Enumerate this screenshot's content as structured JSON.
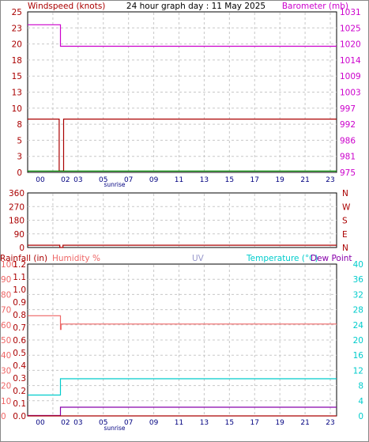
{
  "header": {
    "left_label": "Windspeed (knots)",
    "title": "24 hour graph day : 11 May 2025",
    "right_label": "Barometer (mb)"
  },
  "bottom_header": {
    "rainfall_label": "Rainfall (in)",
    "humidity_label": "Humidity %",
    "uv_label": "UV",
    "temperature_label": "Temperature (°C)",
    "dewpoint_label": "Dew Point"
  },
  "sunrise_label": "sunrise",
  "colors": {
    "frame": "#000000",
    "grid": "#c8c8c8",
    "wind": "#aa0000",
    "wind_avg": "#008800",
    "barometer": "#cc00cc",
    "direction": "#aa0000",
    "rain": "#aa0000",
    "humidity": "#ee6666",
    "uv": "#9999cc",
    "temperature": "#00cccc",
    "dewpoint": "#8800aa"
  },
  "chart_data": [
    {
      "type": "line",
      "name": "wind-barometer",
      "x_ticks": [
        "00",
        "02",
        "03",
        "05",
        "07",
        "09",
        "11",
        "13",
        "15",
        "17",
        "19",
        "21",
        "23"
      ],
      "x_range": [
        23,
        47.5
      ],
      "left_axis": {
        "ticks": [
          "25",
          "23",
          "20",
          "18",
          "15",
          "13",
          "10",
          "8",
          "5",
          "3",
          "0"
        ],
        "range": [
          0,
          25
        ]
      },
      "right_axis": {
        "ticks": [
          "1031",
          "1025",
          "1020",
          "1014",
          "1009",
          "1003",
          "997",
          "992",
          "986",
          "981",
          "975"
        ],
        "range": [
          975,
          1031
        ]
      },
      "series": [
        {
          "key": "barometer",
          "axis": "right",
          "points": [
            [
              23,
              1026.5
            ],
            [
              25.6,
              1026.5
            ],
            [
              25.6,
              1019
            ],
            [
              47.5,
              1019
            ]
          ]
        },
        {
          "key": "wind",
          "axis": "left",
          "points": [
            [
              23,
              8.3
            ],
            [
              25.5,
              8.3
            ],
            [
              25.5,
              0.2
            ],
            [
              25.85,
              0.2
            ],
            [
              25.85,
              8.3
            ],
            [
              47.5,
              8.3
            ]
          ]
        },
        {
          "key": "wind_avg",
          "axis": "left",
          "points": [
            [
              23,
              0.2
            ],
            [
              47.5,
              0.2
            ]
          ]
        }
      ]
    },
    {
      "type": "line",
      "name": "wind-direction",
      "x_ticks": [
        "00",
        "02",
        "03",
        "05",
        "07",
        "09",
        "11",
        "13",
        "15",
        "17",
        "19",
        "21",
        "23"
      ],
      "x_range": [
        23,
        47.5
      ],
      "left_axis": {
        "ticks": [
          "360",
          "270",
          "180",
          "90",
          "0"
        ],
        "range": [
          0,
          360
        ]
      },
      "right_axis": {
        "ticks": [
          "N",
          "W",
          "S",
          "E",
          "N"
        ]
      },
      "series": [
        {
          "key": "direction",
          "axis": "left",
          "points": [
            [
              23,
              15
            ],
            [
              25.55,
              15
            ],
            [
              25.55,
              0
            ],
            [
              25.8,
              0
            ],
            [
              25.8,
              15
            ],
            [
              47.5,
              15
            ]
          ]
        }
      ]
    },
    {
      "type": "line",
      "name": "rain-humidity-temperature",
      "x_ticks": [
        "00",
        "02",
        "03",
        "05",
        "07",
        "09",
        "11",
        "13",
        "15",
        "17",
        "19",
        "21",
        "23"
      ],
      "x_range": [
        23,
        47.5
      ],
      "humidity_axis": {
        "ticks": [
          "100",
          "90",
          "80",
          "70",
          "60",
          "50",
          "40",
          "30",
          "20",
          "10",
          "0"
        ],
        "range": [
          0,
          100
        ]
      },
      "rain_axis": {
        "ticks": [
          "1.2",
          "1.1",
          "1.0",
          "0.9",
          "0.8",
          "0.7",
          "0.6",
          "0.5",
          "0.4",
          "0.3",
          "0.2",
          "0.1",
          "0.0"
        ],
        "range": [
          0,
          1.2
        ]
      },
      "temperature_axis": {
        "ticks": [
          "40",
          "36",
          "32",
          "28",
          "24",
          "20",
          "16",
          "12",
          "8",
          "4",
          "0"
        ],
        "range": [
          0,
          40
        ]
      },
      "series": [
        {
          "key": "humidity",
          "axis": "humidity",
          "points": [
            [
              23,
              66
            ],
            [
              25.6,
              66
            ],
            [
              25.6,
              57
            ],
            [
              25.65,
              57
            ],
            [
              25.65,
              60.5
            ],
            [
              47.5,
              60.5
            ]
          ]
        },
        {
          "key": "temperature",
          "axis": "temperature",
          "points": [
            [
              23,
              5.5
            ],
            [
              25.6,
              5.5
            ],
            [
              25.6,
              9.8
            ],
            [
              47.5,
              9.8
            ]
          ]
        },
        {
          "key": "dewpoint",
          "axis": "temperature",
          "points": [
            [
              23,
              0.1
            ],
            [
              25.6,
              0.1
            ],
            [
              25.6,
              2.3
            ],
            [
              47.5,
              2.3
            ]
          ]
        },
        {
          "key": "rain",
          "axis": "rain",
          "points": [
            [
              23,
              0.0
            ],
            [
              47.5,
              0.0
            ]
          ]
        }
      ]
    }
  ]
}
